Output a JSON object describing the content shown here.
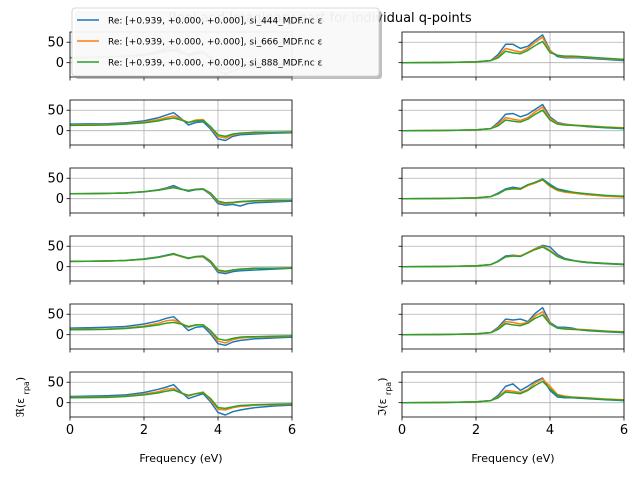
{
  "chart_data": {
    "type": "line",
    "title": "Real and Imaginary part for individual q-points",
    "xlabel": "Frequency (eV)",
    "ylabel_left": "ℜ(ε_rpa)",
    "ylabel_right": "ℑ(ε_rpa)",
    "xlim": [
      0,
      6
    ],
    "ylim": [
      -35,
      75
    ],
    "xticks": [
      "0",
      "2",
      "4",
      "6"
    ],
    "yticks": [
      "0",
      "50"
    ],
    "grid": true,
    "legend_position": "top-left",
    "legend": [
      {
        "label": "Re: [+0.939, +0.000, +0.000], si_444_MDF.nc ε",
        "color": "#1f77b4"
      },
      {
        "label": "Re: [+0.939, +0.000, +0.000], si_666_MDF.nc ε",
        "color": "#ff7f0e"
      },
      {
        "label": "Re: [+0.939, +0.000, +0.000], si_888_MDF.nc ε",
        "color": "#2ca02c"
      }
    ],
    "x": [
      0,
      0.5,
      1,
      1.5,
      2,
      2.4,
      2.6,
      2.8,
      3.0,
      3.2,
      3.4,
      3.6,
      3.8,
      4.0,
      4.2,
      4.4,
      4.6,
      4.8,
      5.0,
      5.5,
      6.0
    ],
    "panels": [
      {
        "real": [
          [
            12,
            13,
            14,
            16,
            20,
            28,
            36,
            44,
            28,
            16,
            22,
            25,
            10,
            -18,
            -28,
            -20,
            -14,
            -11,
            -9,
            -7,
            -5
          ],
          [
            12,
            13,
            14,
            15,
            19,
            25,
            30,
            34,
            26,
            20,
            25,
            28,
            12,
            -12,
            -18,
            -12,
            -8,
            -7,
            -6,
            -5,
            -4
          ],
          [
            12,
            13,
            14,
            15,
            18,
            23,
            27,
            30,
            24,
            20,
            24,
            26,
            14,
            -8,
            -14,
            -10,
            -7,
            -6,
            -5,
            -4,
            -3
          ]
        ],
        "imag": [
          [
            0,
            0.2,
            0.5,
            1,
            2,
            5,
            20,
            45,
            45,
            35,
            40,
            55,
            68,
            30,
            15,
            12,
            12,
            12,
            11,
            8,
            5
          ],
          [
            0,
            0.2,
            0.5,
            1,
            2,
            5,
            15,
            35,
            30,
            26,
            35,
            50,
            62,
            28,
            18,
            14,
            14,
            14,
            13,
            10,
            7
          ],
          [
            0,
            0.2,
            0.5,
            1,
            2,
            5,
            12,
            28,
            24,
            22,
            30,
            42,
            52,
            25,
            18,
            16,
            16,
            15,
            14,
            11,
            8
          ]
        ]
      },
      {
        "real": [
          [
            16,
            16.5,
            17,
            19,
            24,
            32,
            38,
            44,
            30,
            14,
            20,
            22,
            4,
            -20,
            -24,
            -14,
            -10,
            -9,
            -8,
            -6,
            -5
          ],
          [
            14,
            14.5,
            15,
            17,
            21,
            27,
            32,
            36,
            28,
            20,
            26,
            27,
            8,
            -14,
            -18,
            -10,
            -7,
            -6,
            -5,
            -4,
            -4
          ],
          [
            13,
            13.5,
            14,
            16,
            19,
            24,
            28,
            31,
            26,
            20,
            24,
            25,
            10,
            -10,
            -14,
            -8,
            -6,
            -5,
            -4,
            -4,
            -3
          ]
        ],
        "imag": [
          [
            0,
            0.2,
            0.5,
            1,
            2,
            5,
            20,
            40,
            42,
            34,
            40,
            52,
            64,
            34,
            20,
            16,
            14,
            12,
            10,
            7,
            5
          ],
          [
            0,
            0.2,
            0.5,
            1,
            2,
            5,
            16,
            32,
            28,
            25,
            32,
            46,
            58,
            30,
            18,
            15,
            14,
            13,
            12,
            9,
            7
          ],
          [
            0,
            0.2,
            0.5,
            1,
            2,
            5,
            12,
            26,
            23,
            21,
            28,
            40,
            50,
            26,
            16,
            14,
            13,
            12,
            11,
            8,
            6
          ]
        ]
      },
      {
        "real": [
          [
            12,
            12.5,
            13,
            14,
            17,
            22,
            26,
            32,
            24,
            18,
            22,
            23,
            10,
            -12,
            -16,
            -14,
            -18,
            -12,
            -10,
            -8,
            -6
          ],
          [
            12,
            12.5,
            13,
            14,
            17,
            21,
            25,
            28,
            23,
            20,
            23,
            24,
            12,
            -8,
            -12,
            -10,
            -8,
            -7,
            -6,
            -5,
            -4
          ],
          [
            12,
            12.5,
            13,
            14,
            17,
            21,
            24,
            27,
            23,
            20,
            23,
            24,
            14,
            -6,
            -10,
            -9,
            -7,
            -6,
            -5,
            -4,
            -4
          ]
        ],
        "imag": [
          [
            0,
            0.2,
            0.5,
            1,
            2,
            5,
            14,
            24,
            28,
            25,
            34,
            40,
            48,
            35,
            24,
            20,
            16,
            12,
            10,
            7,
            5
          ],
          [
            0,
            0.2,
            0.5,
            1,
            2,
            5,
            12,
            22,
            24,
            23,
            32,
            38,
            46,
            30,
            20,
            16,
            14,
            12,
            10,
            6,
            4
          ],
          [
            0,
            0.2,
            0.5,
            1,
            2,
            5,
            12,
            22,
            25,
            24,
            34,
            40,
            47,
            32,
            22,
            18,
            16,
            14,
            12,
            8,
            6
          ]
        ]
      },
      {
        "real": [
          [
            13,
            13.5,
            14,
            15,
            19,
            24,
            28,
            32,
            25,
            20,
            24,
            24,
            10,
            -14,
            -17,
            -12,
            -10,
            -9,
            -8,
            -6,
            -4
          ],
          [
            13,
            13.5,
            14,
            15,
            18,
            23,
            27,
            30,
            25,
            21,
            24,
            25,
            12,
            -10,
            -13,
            -8,
            -6,
            -5,
            -4,
            -4,
            -3
          ],
          [
            13,
            13.5,
            14,
            15,
            18,
            23,
            27,
            31,
            26,
            21,
            25,
            26,
            14,
            -8,
            -11,
            -8,
            -6,
            -5,
            -4,
            -4,
            -3
          ]
        ],
        "imag": [
          [
            0,
            0.2,
            0.5,
            1,
            2,
            5,
            14,
            26,
            28,
            26,
            34,
            44,
            52,
            48,
            30,
            20,
            16,
            12,
            10,
            7,
            5
          ],
          [
            0,
            0.2,
            0.5,
            1,
            2,
            5,
            13,
            24,
            27,
            26,
            35,
            44,
            50,
            40,
            26,
            18,
            15,
            13,
            11,
            8,
            6
          ],
          [
            0,
            0.2,
            0.5,
            1,
            2,
            5,
            13,
            24,
            26,
            25,
            34,
            42,
            48,
            38,
            25,
            18,
            15,
            13,
            11,
            8,
            6
          ]
        ]
      },
      {
        "real": [
          [
            16,
            17,
            18,
            20,
            26,
            34,
            40,
            44,
            28,
            10,
            18,
            20,
            2,
            -22,
            -26,
            -18,
            -14,
            -12,
            -10,
            -8,
            -6
          ],
          [
            13,
            13.5,
            14,
            16,
            21,
            28,
            34,
            36,
            28,
            18,
            24,
            24,
            8,
            -16,
            -20,
            -12,
            -8,
            -7,
            -6,
            -5,
            -4
          ],
          [
            12,
            12.5,
            13,
            15,
            19,
            24,
            28,
            30,
            26,
            20,
            24,
            24,
            10,
            -10,
            -14,
            -9,
            -6,
            -5,
            -5,
            -4,
            -3
          ]
        ],
        "imag": [
          [
            0,
            0.2,
            0.5,
            1,
            2,
            5,
            18,
            38,
            36,
            38,
            32,
            52,
            66,
            30,
            18,
            18,
            16,
            12,
            10,
            7,
            5
          ],
          [
            0,
            0.2,
            0.5,
            1,
            2,
            5,
            15,
            32,
            30,
            26,
            30,
            46,
            56,
            28,
            16,
            15,
            14,
            13,
            12,
            9,
            7
          ],
          [
            0,
            0.2,
            0.5,
            1,
            2,
            5,
            13,
            27,
            24,
            22,
            28,
            40,
            48,
            26,
            16,
            14,
            13,
            12,
            11,
            8,
            6
          ]
        ]
      },
      {
        "real": [
          [
            15,
            16,
            17,
            19,
            25,
            33,
            38,
            44,
            26,
            10,
            16,
            22,
            2,
            -24,
            -30,
            -22,
            -18,
            -15,
            -12,
            -8,
            -6
          ],
          [
            13,
            13.5,
            14,
            16,
            21,
            27,
            33,
            35,
            24,
            16,
            22,
            26,
            6,
            -16,
            -18,
            -12,
            -9,
            -8,
            -6,
            -5,
            -4
          ],
          [
            12,
            12.5,
            13,
            15,
            19,
            24,
            28,
            31,
            24,
            18,
            22,
            24,
            10,
            -12,
            -14,
            -10,
            -7,
            -6,
            -5,
            -4,
            -3
          ]
        ],
        "imag": [
          [
            0,
            0.2,
            0.5,
            1,
            2,
            5,
            18,
            40,
            46,
            30,
            40,
            52,
            60,
            30,
            14,
            12,
            12,
            11,
            10,
            7,
            5
          ],
          [
            0,
            0.2,
            0.5,
            1,
            2,
            5,
            14,
            30,
            28,
            25,
            32,
            48,
            58,
            40,
            20,
            16,
            14,
            13,
            12,
            9,
            7
          ],
          [
            0,
            0.2,
            0.5,
            1,
            2,
            5,
            12,
            26,
            24,
            22,
            30,
            42,
            52,
            34,
            18,
            14,
            13,
            12,
            11,
            8,
            6
          ]
        ]
      }
    ]
  }
}
